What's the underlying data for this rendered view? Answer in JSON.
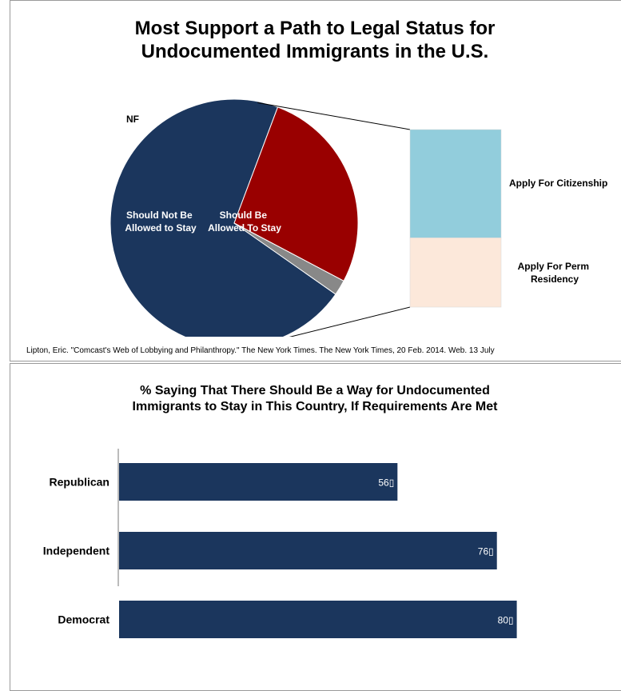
{
  "pie_chart": {
    "title_line1": "Most Support a Path to Legal Status for",
    "title_line2": "Undocumented Immigrants in the U.S.",
    "source": "Lipton, Eric. \"Comcast's Web of Lobbying and Philanthropy.\" The New York Times. The New York Times, 20 Feb. 2014. Web. 13 July",
    "labels": {
      "stay_line1": "Should Be",
      "stay_line2": "Allowed To Stay",
      "not_line1": "Should Not Be",
      "not_line2": "Allowed to Stay",
      "nf": "NF",
      "citizenship": "Apply For Citizenship",
      "perm_line1": "Apply For Perm",
      "perm_line2": "Residency"
    }
  },
  "bar_chart": {
    "title_line1": "% Saying That There Should Be a Way for Undocumented",
    "title_line2": "Immigrants to Stay in This Country, If Requirements Are Met"
  },
  "chart_data": [
    {
      "type": "pie",
      "title": "Most Support a Path to Legal Status for Undocumented Immigrants in the U.S.",
      "slices": [
        {
          "label": "Should Be Allowed To Stay",
          "value": 71,
          "color": "#1b365d"
        },
        {
          "label": "Should Not Be Allowed to Stay",
          "value": 27,
          "color": "#990000"
        },
        {
          "label": "NF",
          "value": 2,
          "color": "#888888"
        }
      ],
      "breakdown": {
        "of": "Should Be Allowed To Stay",
        "type": "stacked-bar",
        "segments": [
          {
            "label": "Apply For Citizenship",
            "value": 61,
            "color": "#92cddc"
          },
          {
            "label": "Apply For Perm Residency",
            "value": 39,
            "color": "#fce8da"
          }
        ]
      }
    },
    {
      "type": "bar",
      "orientation": "horizontal",
      "title": "% Saying That There Should Be a Way for Undocumented Immigrants to Stay in This Country, If Requirements Are Met",
      "categories": [
        "Republican",
        "Independent",
        "Democrat"
      ],
      "values": [
        56,
        76,
        80
      ],
      "value_labels": [
        "56\u0000",
        "76\u0000",
        "80\u0000"
      ],
      "xlim": [
        0,
        100
      ],
      "color": "#1b365d"
    }
  ]
}
